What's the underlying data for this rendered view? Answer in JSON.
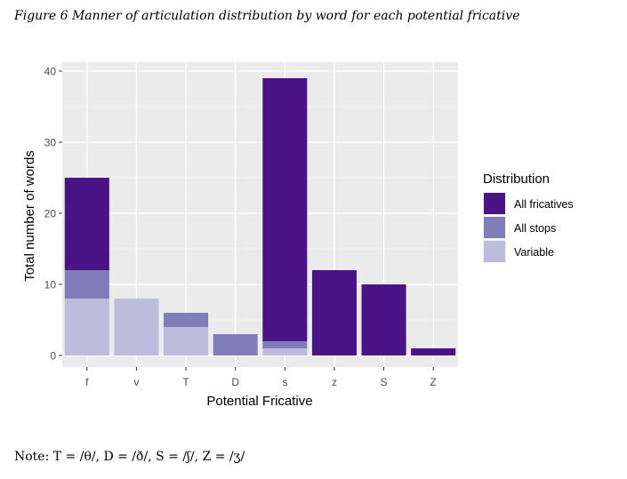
{
  "caption": "Figure 6 Manner of articulation distribution by word for each potential fricative",
  "note": "Note: T = /θ/, D = /ð/, S = /ʃ/, Z = /ʒ/",
  "chart_data": {
    "type": "bar",
    "stacked": true,
    "categories": [
      "f",
      "v",
      "T",
      "D",
      "s",
      "z",
      "S",
      "Z"
    ],
    "series": [
      {
        "name": "Variable",
        "color": "#bcbddc",
        "values": [
          8,
          8,
          4,
          0,
          1,
          0,
          0,
          0
        ]
      },
      {
        "name": "All stops",
        "color": "#807dba",
        "values": [
          4,
          0,
          2,
          3,
          1,
          0,
          0,
          0
        ]
      },
      {
        "name": "All fricatives",
        "color": "#4a1486",
        "values": [
          13,
          0,
          0,
          0,
          37,
          12,
          10,
          1
        ]
      }
    ],
    "xlabel": "Potential Fricative",
    "ylabel": "Total number of words",
    "ylim": [
      0,
      40
    ],
    "yticks": [
      0,
      10,
      20,
      30,
      40
    ],
    "grid": true,
    "legend": {
      "title": "Distribution",
      "position": "right",
      "order": [
        "All fricatives",
        "All stops",
        "Variable"
      ]
    }
  }
}
